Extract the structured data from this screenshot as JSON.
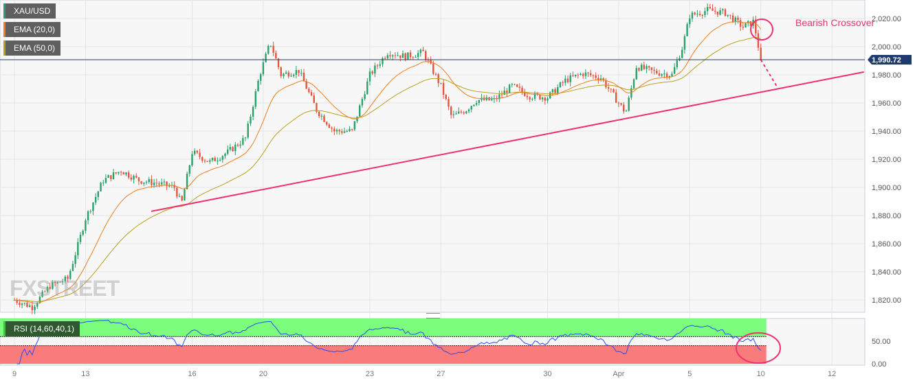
{
  "legend": {
    "symbol": "XAU/USD",
    "ema20": "EMA (20,0)",
    "ema50": "EMA (50,0)",
    "rsi": "RSI (14,60,40,1)"
  },
  "colors": {
    "up": "#26a269",
    "down": "#e5533d",
    "ema20": "#f07c1b",
    "ema50": "#b8a21c",
    "trend": "#f0306e",
    "price_line": "#1e3a6e",
    "rsi": "#2a4bf0",
    "overbought": "#7cfc7c",
    "oversold": "#fa7b7b"
  },
  "annotation": "Bearish Crossover",
  "watermark": "FXSTREET",
  "chart_data": {
    "type": "candlestick",
    "title": "",
    "y_ticks": [
      "2,020.00",
      "2,000.00",
      "1,980.00",
      "1,960.00",
      "1,940.00",
      "1,920.00",
      "1,900.00",
      "1,880.00",
      "1,860.00",
      "1,840.00",
      "1,820.00"
    ],
    "y_tick_values": [
      2020,
      2000,
      1980,
      1960,
      1940,
      1920,
      1900,
      1880,
      1860,
      1840,
      1820
    ],
    "ylim": [
      1810,
      2035
    ],
    "last_price": 1990.72,
    "last_price_label": "1,990.72",
    "x_ticks": [
      {
        "label": "9",
        "day": 0
      },
      {
        "label": "13",
        "day": 2
      },
      {
        "label": "16",
        "day": 5
      },
      {
        "label": "20",
        "day": 7
      },
      {
        "label": "23",
        "day": 10
      },
      {
        "label": "27",
        "day": 12
      },
      {
        "label": "30",
        "day": 15
      },
      {
        "label": "Apr",
        "day": 17
      },
      {
        "label": "5",
        "day": 19
      },
      {
        "label": "10",
        "day": 21
      },
      {
        "label": "12",
        "day": 23
      }
    ],
    "close_path": [
      [
        0,
        1820
      ],
      [
        0.5,
        1815
      ],
      [
        1,
        1830
      ],
      [
        1.5,
        1835
      ],
      [
        1.8,
        1860
      ],
      [
        2,
        1878
      ],
      [
        2.5,
        1905
      ],
      [
        3,
        1912
      ],
      [
        3.5,
        1905
      ],
      [
        4,
        1903
      ],
      [
        4.5,
        1900
      ],
      [
        4.7,
        1888
      ],
      [
        5,
        1925
      ],
      [
        5.5,
        1918
      ],
      [
        6,
        1925
      ],
      [
        6.5,
        1935
      ],
      [
        6.9,
        1980
      ],
      [
        7.2,
        2003
      ],
      [
        7.5,
        1980
      ],
      [
        8,
        1983
      ],
      [
        8.5,
        1955
      ],
      [
        9,
        1940
      ],
      [
        9.5,
        1940
      ],
      [
        10,
        1980
      ],
      [
        10.5,
        1996
      ],
      [
        11,
        1993
      ],
      [
        11.5,
        1996
      ],
      [
        12,
        1972
      ],
      [
        12.3,
        1950
      ],
      [
        12.7,
        1955
      ],
      [
        13,
        1962
      ],
      [
        13.5,
        1962
      ],
      [
        14,
        1972
      ],
      [
        14.5,
        1965
      ],
      [
        15,
        1964
      ],
      [
        15.5,
        1976
      ],
      [
        16,
        1981
      ],
      [
        16.5,
        1978
      ],
      [
        17,
        1960
      ],
      [
        17.2,
        1953
      ],
      [
        17.5,
        1986
      ],
      [
        18,
        1982
      ],
      [
        18.5,
        1980
      ],
      [
        18.8,
        2000
      ],
      [
        19,
        2022
      ],
      [
        19.5,
        2026
      ],
      [
        20,
        2024
      ],
      [
        20.5,
        2014
      ],
      [
        20.8,
        2018
      ],
      [
        21,
        1990.72
      ]
    ],
    "trendline": [
      [
        3.85,
        1883
      ],
      [
        23.9,
        1982
      ]
    ],
    "rsi": {
      "ticks": [
        "50.00",
        "0.00"
      ],
      "tick_values": [
        50,
        0
      ],
      "upper": 60,
      "lower": 40
    }
  }
}
